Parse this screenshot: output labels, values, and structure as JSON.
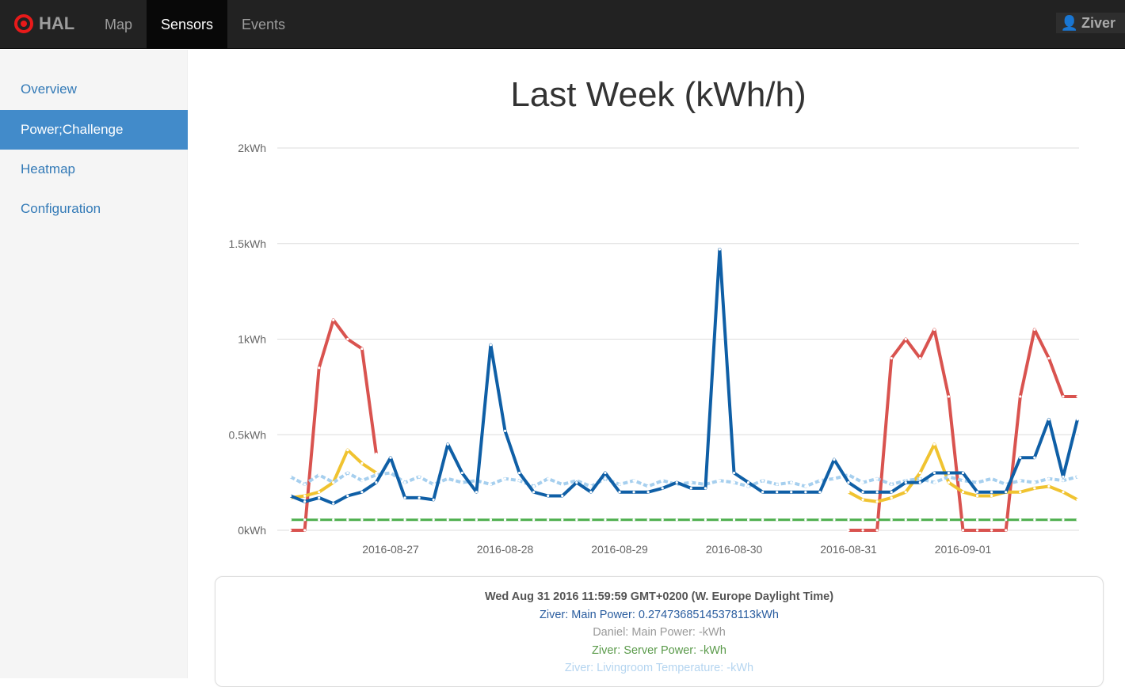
{
  "navbar": {
    "brand": "HAL",
    "items": [
      {
        "label": "Map"
      },
      {
        "label": "Sensors",
        "active": true
      },
      {
        "label": "Events"
      }
    ],
    "user": "Ziver"
  },
  "sidebar": {
    "items": [
      {
        "label": "Overview"
      },
      {
        "label": "Power;Challenge",
        "active": true
      },
      {
        "label": "Heatmap"
      },
      {
        "label": "Configuration"
      }
    ]
  },
  "chart_data": {
    "type": "line",
    "title": "Last Week (kWh/h)",
    "ylim": [
      0,
      2
    ],
    "yticks": [
      "0kWh",
      "0.5kWh",
      "1kWh",
      "1.5kWh",
      "2kWh"
    ],
    "xticks": [
      "2016-08-27",
      "2016-08-28",
      "2016-08-29",
      "2016-08-30",
      "2016-08-31",
      "2016-09-01"
    ],
    "grid": true,
    "x": [
      "2016-08-26T03:00",
      "2016-08-26T06:00",
      "2016-08-26T09:00",
      "2016-08-26T12:00",
      "2016-08-26T15:00",
      "2016-08-26T18:00",
      "2016-08-26T21:00",
      "2016-08-27T00:00",
      "2016-08-27T03:00",
      "2016-08-27T06:00",
      "2016-08-27T09:00",
      "2016-08-27T12:00",
      "2016-08-27T15:00",
      "2016-08-27T18:00",
      "2016-08-27T21:00",
      "2016-08-28T00:00",
      "2016-08-28T03:00",
      "2016-08-28T06:00",
      "2016-08-28T09:00",
      "2016-08-28T12:00",
      "2016-08-28T15:00",
      "2016-08-28T18:00",
      "2016-08-28T21:00",
      "2016-08-29T00:00",
      "2016-08-29T03:00",
      "2016-08-29T06:00",
      "2016-08-29T09:00",
      "2016-08-29T12:00",
      "2016-08-29T15:00",
      "2016-08-29T18:00",
      "2016-08-29T21:00",
      "2016-08-30T00:00",
      "2016-08-30T03:00",
      "2016-08-30T06:00",
      "2016-08-30T09:00",
      "2016-08-30T12:00",
      "2016-08-30T15:00",
      "2016-08-30T18:00",
      "2016-08-30T21:00",
      "2016-08-31T00:00",
      "2016-08-31T03:00",
      "2016-08-31T06:00",
      "2016-08-31T09:00",
      "2016-08-31T12:00",
      "2016-08-31T15:00",
      "2016-08-31T18:00",
      "2016-08-31T21:00",
      "2016-09-01T00:00",
      "2016-09-01T03:00",
      "2016-09-01T06:00",
      "2016-09-01T09:00",
      "2016-09-01T12:00",
      "2016-09-01T15:00",
      "2016-09-01T18:00",
      "2016-09-01T21:00",
      "2016-09-02T00:00"
    ],
    "series": [
      {
        "color": "#d9534f",
        "values": [
          0,
          0,
          0.85,
          1.1,
          1.0,
          0.95,
          0.4,
          null,
          null,
          null,
          null,
          null,
          null,
          null,
          null,
          null,
          null,
          null,
          null,
          null,
          null,
          null,
          null,
          null,
          null,
          null,
          null,
          null,
          null,
          null,
          null,
          null,
          null,
          null,
          null,
          null,
          null,
          null,
          null,
          0,
          0,
          0,
          0.9,
          1.0,
          0.9,
          1.05,
          0.7,
          0,
          0,
          0,
          0,
          0.7,
          1.05,
          0.9,
          0.7,
          0.7
        ]
      },
      {
        "color": "#f0c330",
        "values": [
          0.17,
          0.18,
          0.2,
          0.25,
          0.42,
          0.35,
          0.3,
          null,
          null,
          null,
          null,
          null,
          null,
          null,
          null,
          null,
          null,
          null,
          null,
          null,
          null,
          null,
          null,
          null,
          null,
          null,
          null,
          null,
          null,
          null,
          null,
          null,
          null,
          null,
          null,
          null,
          null,
          null,
          null,
          0.2,
          0.16,
          0.15,
          0.17,
          0.2,
          0.3,
          0.45,
          0.25,
          0.2,
          0.18,
          0.18,
          0.2,
          0.2,
          0.22,
          0.23,
          0.2,
          0.16
        ]
      },
      {
        "name": "Ziver: Server Power",
        "color": "#4cae4c",
        "values": [
          0.055,
          0.055,
          0.055,
          0.055,
          0.055,
          0.055,
          0.055,
          0.055,
          0.055,
          0.055,
          0.055,
          0.055,
          0.055,
          0.055,
          0.055,
          0.055,
          0.055,
          0.055,
          0.055,
          0.055,
          0.055,
          0.055,
          0.055,
          0.055,
          0.055,
          0.055,
          0.055,
          0.055,
          0.055,
          0.055,
          0.055,
          0.055,
          0.055,
          0.055,
          0.055,
          0.055,
          0.055,
          0.055,
          0.055,
          0.055,
          0.055,
          0.055,
          0.055,
          0.055,
          0.055,
          0.055,
          0.055,
          0.055,
          0.055,
          0.055,
          0.055,
          0.055,
          0.055,
          0.055,
          0.055,
          0.055
        ]
      },
      {
        "name": "Ziver: Livingroom Temperature",
        "color": "#a6cfee",
        "values": [
          0.28,
          0.24,
          0.29,
          0.25,
          0.3,
          0.26,
          0.29,
          0.3,
          0.25,
          0.28,
          0.24,
          0.27,
          0.25,
          0.26,
          0.24,
          0.27,
          0.26,
          0.23,
          0.27,
          0.24,
          0.26,
          0.23,
          0.27,
          0.24,
          0.26,
          0.23,
          0.26,
          0.24,
          0.25,
          0.24,
          0.26,
          0.25,
          0.23,
          0.26,
          0.24,
          0.25,
          0.23,
          0.26,
          0.27,
          0.29,
          0.25,
          0.27,
          0.24,
          0.26,
          0.27,
          0.25,
          0.28,
          0.26,
          0.25,
          0.27,
          0.24,
          0.26,
          0.25,
          0.27,
          0.26,
          0.28
        ]
      },
      {
        "name": "Ziver: Main Power",
        "color": "#0f5fa6",
        "values": [
          0.18,
          0.15,
          0.17,
          0.14,
          0.18,
          0.2,
          0.25,
          0.38,
          0.17,
          0.17,
          0.16,
          0.45,
          0.3,
          0.2,
          0.97,
          0.52,
          0.3,
          0.2,
          0.18,
          0.18,
          0.25,
          0.2,
          0.3,
          0.2,
          0.2,
          0.2,
          0.22,
          0.25,
          0.22,
          0.22,
          1.47,
          0.3,
          0.25,
          0.2,
          0.2,
          0.2,
          0.2,
          0.2,
          0.37,
          0.25,
          0.2,
          0.2,
          0.2,
          0.25,
          0.25,
          0.3,
          0.3,
          0.3,
          0.2,
          0.2,
          0.2,
          0.38,
          0.38,
          0.58,
          0.28,
          0.58
        ]
      }
    ]
  },
  "tooltip": {
    "time": "Wed Aug 31 2016 11:59:59 GMT+0200 (W. Europe Daylight Time)",
    "lines": [
      {
        "text": "Ziver: Main Power: 0.27473685145378113kWh",
        "color": "#2a5d9f"
      },
      {
        "text": "Daniel: Main Power: -kWh",
        "color": "#999999"
      },
      {
        "text": "Ziver: Server Power: -kWh",
        "color": "#5a9a4a"
      },
      {
        "text": "Ziver: Livingroom Temperature: -kWh",
        "color": "#b5d5f0"
      }
    ]
  }
}
